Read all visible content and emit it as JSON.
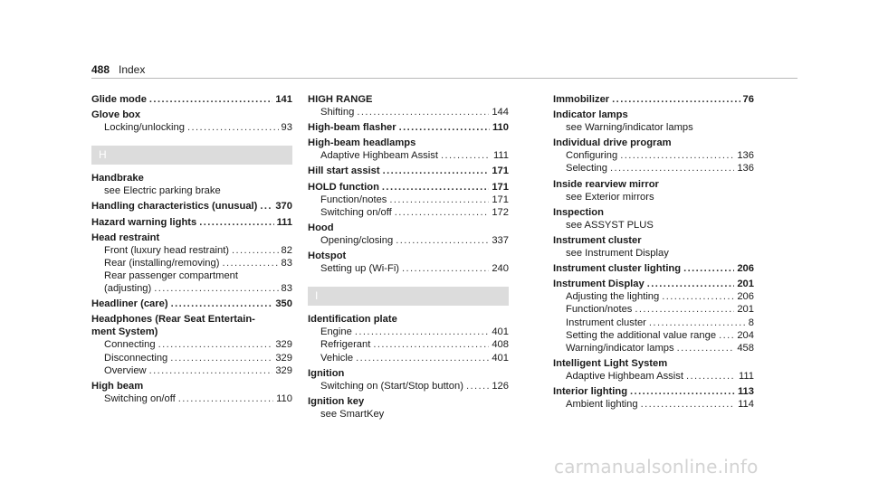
{
  "header": {
    "page_number": "488",
    "label": "Index"
  },
  "watermark": "carmanualsonline.info",
  "col1": {
    "e1": {
      "title": "Glide mode",
      "page": "141"
    },
    "e2": {
      "title": "Glove box",
      "s1": {
        "text": "Locking/unlocking",
        "page": "93"
      }
    },
    "letter_h": "H",
    "e3": {
      "title": "Handbrake",
      "s1": "see Electric parking brake"
    },
    "e4": {
      "title": "Handling characteristics (unusual)",
      "page": "370"
    },
    "e5": {
      "title": "Hazard warning lights",
      "page": "111"
    },
    "e6": {
      "title": "Head restraint",
      "s1": {
        "text": "Front (luxury head restraint)",
        "page": "82"
      },
      "s2": {
        "text": "Rear (installing/removing)",
        "page": "83"
      },
      "s3a": "Rear passenger compartment",
      "s3b": {
        "text": "(adjusting)",
        "page": "83"
      }
    },
    "e7": {
      "title": "Headliner (care)",
      "page": "350"
    },
    "e8": {
      "title1": "Headphones (Rear Seat Entertain-",
      "title2": "ment System)",
      "s1": {
        "text": "Connecting",
        "page": "329"
      },
      "s2": {
        "text": "Disconnecting",
        "page": "329"
      },
      "s3": {
        "text": "Overview",
        "page": "329"
      }
    },
    "e9": {
      "title": "High beam",
      "s1": {
        "text": "Switching on/off",
        "page": "110"
      }
    }
  },
  "col2": {
    "e1": {
      "title": "HIGH RANGE",
      "s1": {
        "text": "Shifting",
        "page": "144"
      }
    },
    "e2": {
      "title": "High-beam flasher",
      "page": "110"
    },
    "e3": {
      "title": "High-beam headlamps",
      "s1": {
        "text": "Adaptive Highbeam Assist",
        "page": "111"
      }
    },
    "e4": {
      "title": "Hill start assist",
      "page": "171"
    },
    "e5": {
      "title": "HOLD function",
      "page": "171",
      "s1": {
        "text": "Function/notes",
        "page": "171"
      },
      "s2": {
        "text": "Switching on/off",
        "page": "172"
      }
    },
    "e6": {
      "title": "Hood",
      "s1": {
        "text": "Opening/closing",
        "page": "337"
      }
    },
    "e7": {
      "title": "Hotspot",
      "s1": {
        "text": "Setting up (Wi-Fi)",
        "page": "240"
      }
    },
    "letter_i": "I",
    "e8": {
      "title": "Identification plate",
      "s1": {
        "text": "Engine",
        "page": "401"
      },
      "s2": {
        "text": "Refrigerant",
        "page": "408"
      },
      "s3": {
        "text": "Vehicle",
        "page": "401"
      }
    },
    "e9": {
      "title": "Ignition",
      "s1": {
        "text": "Switching on (Start/Stop button)",
        "page": "126"
      }
    },
    "e10": {
      "title": "Ignition key",
      "s1": "see SmartKey"
    }
  },
  "col3": {
    "e1": {
      "title": "Immobilizer",
      "page": "76"
    },
    "e2": {
      "title": "Indicator lamps",
      "s1": "see Warning/indicator lamps"
    },
    "e3": {
      "title": "Individual drive program",
      "s1": {
        "text": "Configuring",
        "page": "136"
      },
      "s2": {
        "text": "Selecting",
        "page": "136"
      }
    },
    "e4": {
      "title": "Inside rearview mirror",
      "s1": "see Exterior mirrors"
    },
    "e5": {
      "title": "Inspection",
      "s1": "see ASSYST PLUS"
    },
    "e6": {
      "title": "Instrument cluster",
      "s1": "see Instrument Display"
    },
    "e7": {
      "title": "Instrument cluster lighting",
      "page": "206"
    },
    "e8": {
      "title": "Instrument Display",
      "page": "201",
      "s1": {
        "text": "Adjusting the lighting",
        "page": "206"
      },
      "s2": {
        "text": "Function/notes",
        "page": "201"
      },
      "s3": {
        "text": "Instrument cluster",
        "page": "8"
      },
      "s4": {
        "text": "Setting the additional value range",
        "page": "204"
      },
      "s5": {
        "text": "Warning/indicator lamps",
        "page": "458"
      }
    },
    "e9": {
      "title": "Intelligent Light System",
      "s1": {
        "text": "Adaptive Highbeam Assist",
        "page": "111"
      }
    },
    "e10": {
      "title": "Interior lighting",
      "page": "113",
      "s1": {
        "text": "Ambient lighting",
        "page": "114"
      }
    }
  }
}
